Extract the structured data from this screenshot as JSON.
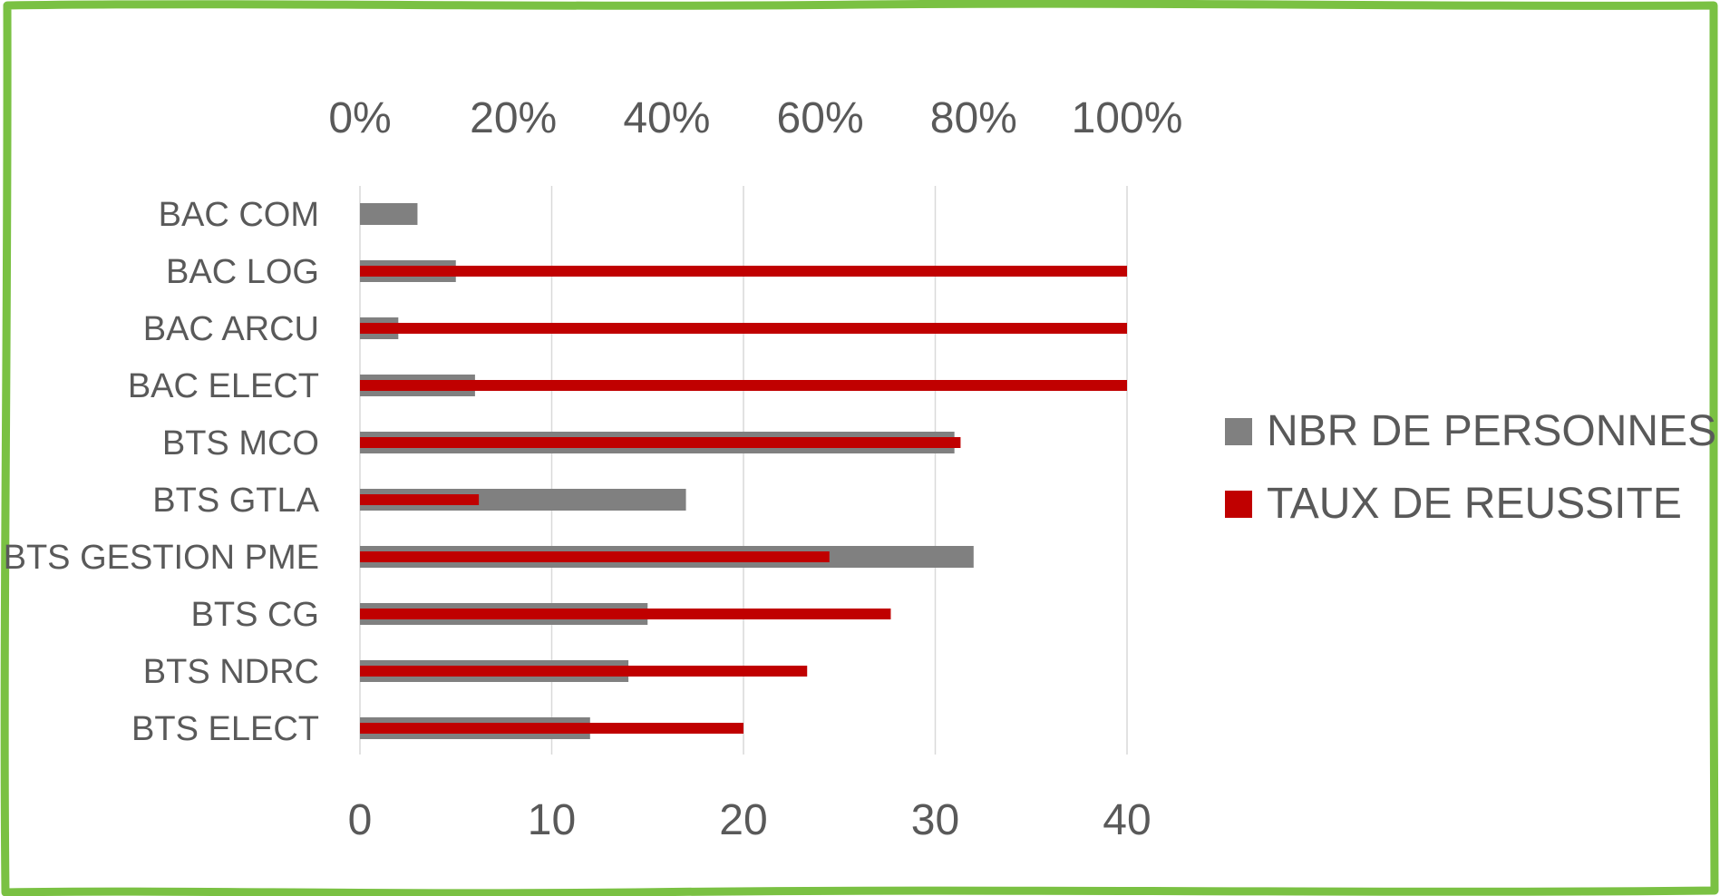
{
  "chart_data": {
    "type": "bar",
    "orientation": "horizontal",
    "categories": [
      "BAC COM",
      "BAC LOG",
      "BAC ARCU",
      "BAC ELECT",
      "BTS MCO",
      "BTS GTLA",
      "BTS GESTION PME",
      "BTS CG",
      "BTS NDRC",
      "BTS ELECT"
    ],
    "series": [
      {
        "name": "NBR DE PERSONNES",
        "axis": "bottom",
        "color": "#808080",
        "values": [
          3,
          5,
          2,
          6,
          31,
          17,
          32,
          15,
          14,
          12
        ]
      },
      {
        "name": "TAUX DE REUSSITE",
        "axis": "top",
        "color": "#c00000",
        "values": [
          null,
          1.0,
          1.0,
          1.0,
          0.783,
          0.155,
          0.612,
          0.692,
          0.583,
          0.5
        ]
      }
    ],
    "bottom_axis": {
      "min": 0,
      "max": 40,
      "ticks": [
        "0",
        "10",
        "20",
        "30",
        "40"
      ]
    },
    "top_axis": {
      "min": 0,
      "max": 1,
      "ticks": [
        "0%",
        "20%",
        "40%",
        "60%",
        "80%",
        "100%"
      ]
    },
    "grid": true,
    "legend_position": "right"
  },
  "frame_color": "#7ac143"
}
